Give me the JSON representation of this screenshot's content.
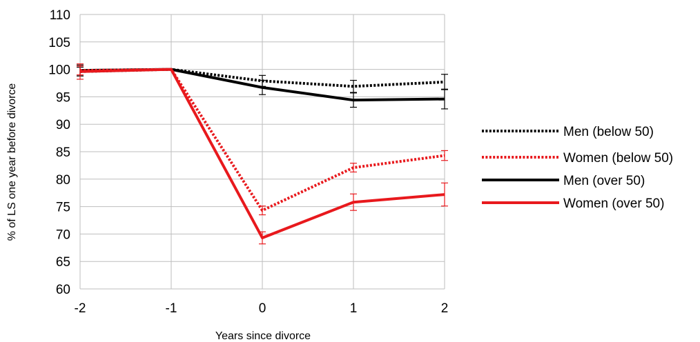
{
  "chart_data": {
    "type": "line",
    "title": "",
    "xlabel": "Years since divorce",
    "ylabel": "% of LS one year before divorce",
    "x": [
      -2,
      -1,
      0,
      1,
      2
    ],
    "x_tick_labels": [
      "-2",
      "-1",
      "0",
      "1",
      "2"
    ],
    "ylim": [
      60,
      110
    ],
    "y_ticks": [
      "60",
      "65",
      "70",
      "75",
      "80",
      "85",
      "90",
      "95",
      "100",
      "105",
      "110"
    ],
    "grid": true,
    "legend_position": "right",
    "series": [
      {
        "name": "Men (below 50)",
        "color": "#000000",
        "style": "dotted",
        "values": [
          99.6,
          100,
          97.9,
          96.9,
          97.7
        ],
        "error": [
          0.8,
          0,
          1.0,
          1.1,
          1.4
        ]
      },
      {
        "name": "Women (below 50)",
        "color": "#e8191d",
        "style": "dotted",
        "values": [
          99.8,
          100,
          74.3,
          82.1,
          84.3
        ],
        "error": [
          0.8,
          0,
          0.8,
          0.8,
          0.9
        ]
      },
      {
        "name": "Men (over 50)",
        "color": "#000000",
        "style": "solid",
        "values": [
          99.8,
          100,
          96.7,
          94.4,
          94.6
        ],
        "error": [
          1.0,
          0,
          1.3,
          1.3,
          1.8
        ]
      },
      {
        "name": "Women (over 50)",
        "color": "#e8191d",
        "style": "solid",
        "values": [
          99.6,
          100,
          69.3,
          75.8,
          77.2
        ],
        "error": [
          1.4,
          0,
          1.1,
          1.5,
          2.1
        ]
      }
    ]
  }
}
